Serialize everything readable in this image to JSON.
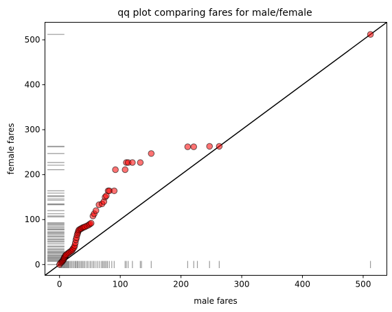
{
  "chart_data": {
    "type": "scatter",
    "title": "qq plot comparing fares for male/female",
    "xlabel": "male fares",
    "ylabel": "female fares",
    "xlim": [
      -24,
      539
    ],
    "ylim": [
      -24,
      539
    ],
    "xticks": [
      0,
      100,
      200,
      300,
      400,
      500
    ],
    "yticks": [
      0,
      100,
      200,
      300,
      400,
      500
    ],
    "grid": false,
    "reference_line": {
      "x": [
        -24,
        539
      ],
      "y": [
        -24,
        539
      ],
      "color": "#000000"
    },
    "point_fill": "#ff0000",
    "point_edge": "#000000",
    "rug_color": "#808080",
    "qq_points": {
      "x": [
        0,
        2,
        4,
        5,
        6,
        7,
        7.5,
        8,
        9,
        10,
        11,
        13,
        15,
        17,
        19,
        21,
        22,
        24,
        25,
        26,
        27,
        28,
        29,
        30,
        31,
        32,
        34,
        36,
        38,
        40,
        42,
        45,
        48,
        50,
        52,
        55,
        57,
        60,
        65,
        70,
        73,
        75,
        77,
        80,
        82,
        90,
        92,
        108,
        110,
        113,
        120,
        133,
        151,
        211,
        221,
        247,
        263,
        512
      ],
      "y": [
        0,
        4,
        6,
        8,
        10,
        12,
        14,
        16,
        18,
        20,
        22,
        24,
        26,
        28,
        30,
        32,
        35,
        38,
        42,
        48,
        55,
        60,
        66,
        70,
        74,
        77,
        79,
        80,
        82,
        83,
        84,
        86,
        88,
        90,
        92,
        108,
        113,
        120,
        133,
        135,
        140,
        150,
        153,
        164,
        164,
        164,
        211,
        211,
        227,
        227,
        227,
        227,
        247,
        262,
        262,
        263,
        263,
        512
      ]
    },
    "male_rug": [
      0,
      2,
      3,
      4,
      5,
      6,
      7,
      7.5,
      8,
      9,
      10,
      11,
      12,
      13,
      14,
      15,
      16,
      18,
      20,
      22,
      24,
      26,
      27,
      29,
      30,
      32,
      34,
      36,
      38,
      40,
      42,
      45,
      47,
      50,
      52,
      55,
      57,
      60,
      63,
      66,
      69,
      71,
      73,
      75,
      77,
      79,
      82,
      86,
      90,
      108,
      110,
      113,
      120,
      133,
      135,
      151,
      211,
      221,
      227,
      247,
      263,
      512
    ],
    "female_rug": [
      0,
      7,
      8,
      10,
      12,
      13,
      15,
      16,
      18,
      20,
      22,
      25,
      26,
      28,
      30,
      33,
      35,
      39,
      41,
      46,
      50,
      52,
      55,
      57,
      61,
      63,
      66,
      69,
      71,
      73,
      77,
      78,
      80,
      83,
      86,
      89,
      91,
      93,
      106,
      108,
      113,
      120,
      133,
      134,
      135,
      143,
      146,
      151,
      153,
      159,
      164,
      211,
      221,
      227,
      247,
      262,
      263,
      512
    ]
  }
}
